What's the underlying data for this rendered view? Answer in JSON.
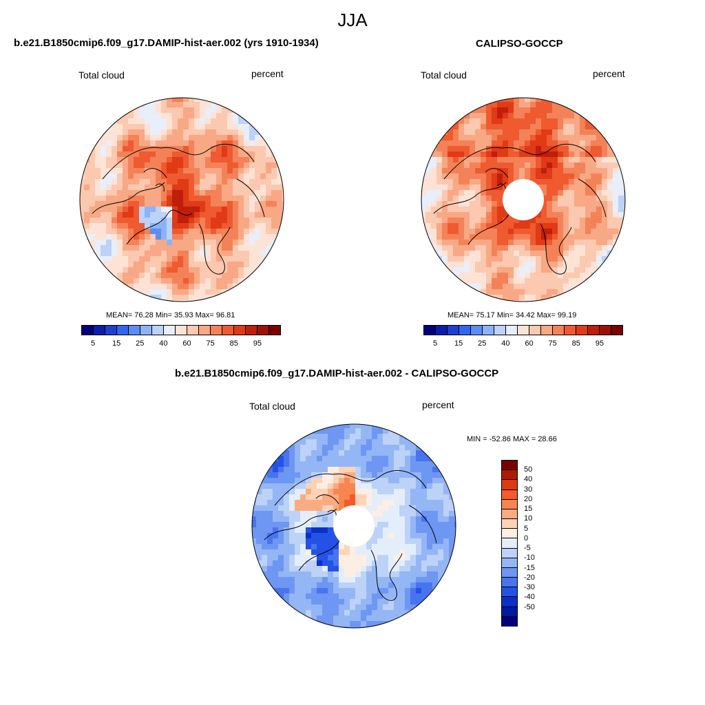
{
  "figure": {
    "season": "JJA",
    "panels": [
      {
        "title": "b.e21.B1850cmip6.f09_g17.DAMIP-hist-aer.002 (yrs 1910-1934)",
        "left_label": "Total cloud",
        "right_label": "percent",
        "stats": "MEAN=  76.28  Min=  35.93  Max=  96.81",
        "has_pole_hole": false
      },
      {
        "title": "CALIPSO-GOCCP",
        "left_label": "Total cloud",
        "right_label": "percent",
        "stats": "MEAN=  75.17  Min=  34.42  Max=  99.19",
        "has_pole_hole": true
      },
      {
        "title": "b.e21.B1850cmip6.f09_g17.DAMIP-hist-aer.002 - CALIPSO-GOCCP",
        "left_label": "Total cloud",
        "right_label": "percent",
        "stats": "MIN = -52.86 MAX =  28.66",
        "has_pole_hole": true
      }
    ],
    "abs_colorbar": {
      "colors": [
        "#00007a",
        "#0a1fa8",
        "#1f3fd0",
        "#3366f0",
        "#5c8cf5",
        "#8cb3f7",
        "#bcd2f7",
        "#e8eefa",
        "#fde3d6",
        "#fbc8b0",
        "#f8a884",
        "#f48258",
        "#ef5a30",
        "#e03a16",
        "#bf1e0c",
        "#9e1005",
        "#7a0000"
      ],
      "tick_labels": [
        "5",
        "15",
        "25",
        "40",
        "60",
        "75",
        "85",
        "95"
      ]
    },
    "diff_colorbar": {
      "colors": [
        "#7a0000",
        "#b01a05",
        "#e03a10",
        "#f55a28",
        "#f8844f",
        "#fbab80",
        "#fdd3b8",
        "#fdeee4",
        "#e4eefb",
        "#bcd2f7",
        "#94b6f5",
        "#6e96f3",
        "#4874ef",
        "#2452e6",
        "#0b2fc8",
        "#001aa0",
        "#000080"
      ],
      "tick_labels": [
        "50",
        "40",
        "30",
        "20",
        "15",
        "10",
        "5",
        "0",
        "-5",
        "-10",
        "-15",
        "-20",
        "-30",
        "-40",
        "-50"
      ]
    }
  }
}
